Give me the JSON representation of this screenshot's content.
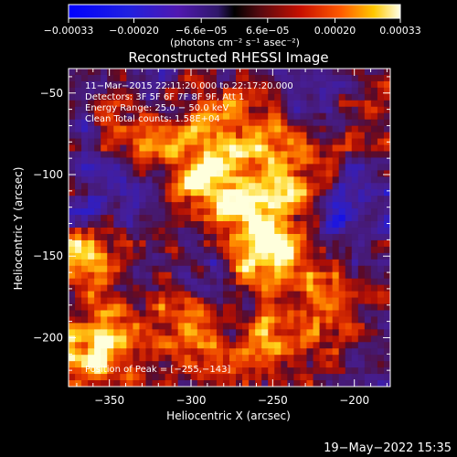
{
  "chart_data": {
    "type": "heatmap",
    "title": "Reconstructed RHESSI Image",
    "xlabel": "Heliocentric X (arcsec)",
    "ylabel": "Heliocentric Y (arcsec)",
    "xlim": [
      -375,
      -178
    ],
    "ylim": [
      -230,
      -35
    ],
    "x_ticks": [
      -350,
      -300,
      -250,
      -200
    ],
    "x_tick_labels": [
      "−350",
      "−300",
      "−250",
      "−200"
    ],
    "y_ticks": [
      -50,
      -100,
      -150,
      -200
    ],
    "y_tick_labels": [
      "−50",
      "−100",
      "−150",
      "−200"
    ],
    "colorbar": {
      "range": [
        -0.00033,
        0.00033
      ],
      "ticks": [
        -0.00033,
        -0.0002,
        -6.6e-05,
        6.6e-05,
        0.0002,
        0.00033
      ],
      "tick_labels": [
        "−0.00033",
        "−0.00020",
        "−6.6e−05",
        "6.6e−05",
        "0.00020",
        "0.00033"
      ],
      "unit_label": "(photons cm⁻² s⁻¹ asec⁻²)"
    },
    "annotations": [
      "11−Mar−2015 22:11:20.000 to 22:17:20.000",
      "Detectors: 3F 5F 6F 7F 8F 9F, Att 1",
      "Energy Range: 25.0 − 50.0 keV",
      "Clean     Total counts: 1.58E+04"
    ],
    "peak_label": "Position of Peak = [−255,−143]",
    "peak": [
      -255,
      -143
    ],
    "bright_sources": [
      {
        "x": -290,
        "y": -105,
        "level": 0.85
      },
      {
        "x": -255,
        "y": -143,
        "level": 1.0
      },
      {
        "x": -240,
        "y": -100,
        "level": 0.8
      },
      {
        "x": -330,
        "y": -75,
        "level": 0.6
      },
      {
        "x": -275,
        "y": -70,
        "level": 0.55
      },
      {
        "x": -365,
        "y": -150,
        "level": 0.7
      },
      {
        "x": -360,
        "y": -205,
        "level": 0.8
      },
      {
        "x": -305,
        "y": -200,
        "level": 0.6
      },
      {
        "x": -250,
        "y": -205,
        "level": 0.55
      },
      {
        "x": -210,
        "y": -200,
        "level": 0.45
      },
      {
        "x": -190,
        "y": -60,
        "level": 0.35
      },
      {
        "x": -220,
        "y": -170,
        "level": 0.3
      }
    ],
    "dark_regions": [
      {
        "x": -345,
        "y": -110,
        "level": -0.4
      },
      {
        "x": -205,
        "y": -120,
        "level": -0.35
      },
      {
        "x": -200,
        "y": -215,
        "level": -0.3
      },
      {
        "x": -215,
        "y": -45,
        "level": -0.25
      }
    ]
  },
  "footer": {
    "date": "19−May−2022 15:35"
  }
}
